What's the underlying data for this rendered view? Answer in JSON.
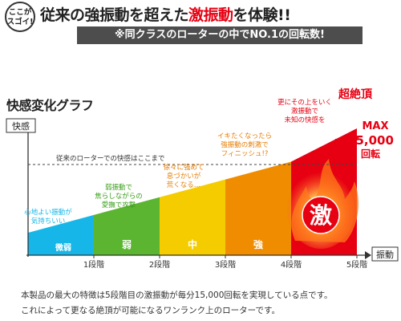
{
  "header": {
    "badge_line1": "ここが",
    "badge_line2": "スゴイ!",
    "title_pre": "従来の強振動を超えた",
    "title_red": "激振動",
    "title_post": "を体験!!",
    "subtitle": "※同クラスのローターの中でNO.1の回転数!"
  },
  "colors": {
    "cyan": "#16b7e8",
    "green": "#5bb531",
    "yellow": "#f5cc00",
    "orange": "#f08c00",
    "red": "#e60012",
    "text_green": "#3a9e1a",
    "text_orange": "#e57c00"
  },
  "chart_data": {
    "type": "area",
    "title": "快感変化グラフ",
    "ylabel": "快感",
    "xlabel": "振動",
    "categories": [
      "1段階",
      "2段階",
      "3段階",
      "4段階",
      "5段階"
    ],
    "bands": [
      {
        "label": "微弱",
        "color": "#16b7e8",
        "note": [
          "心地よい振動が",
          "気持ちいい"
        ]
      },
      {
        "label": "弱",
        "color": "#5bb531",
        "note": [
          "弱振動で",
          "焦らしながらの",
          "愛撫で攻撃"
        ]
      },
      {
        "label": "中",
        "color": "#f5cc00",
        "note": [
          "徐々に強めて",
          "息づかいが",
          "荒くなる…"
        ]
      },
      {
        "label": "強",
        "color": "#f08c00",
        "note": [
          "イキたくなったら",
          "強振動の刺激で",
          "フィニッシュ!?"
        ]
      },
      {
        "label": "激",
        "color": "#e60012",
        "note": [
          "更にその上をいく",
          "激振動で",
          "未知の快感を"
        ]
      }
    ],
    "reference_line": "従来のローターでの快感はここまで",
    "peak_label": "超絶頂",
    "max_label": "MAX",
    "rpm_prefix": "毎分",
    "rpm_value": "15,000",
    "rpm_unit": "回転"
  },
  "footer": {
    "line1": "本製品の最大の特徴は5段階目の激振動が毎分15,000回転を実現している点です。",
    "line2": "これによって更なる絶頂が可能になるワンランク上のローターです。"
  }
}
